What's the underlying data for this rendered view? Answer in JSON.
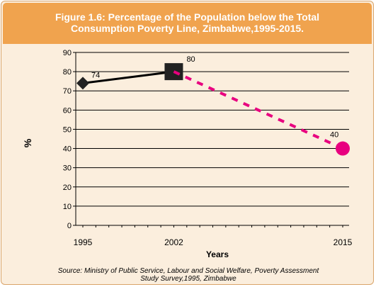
{
  "header": {
    "title_line1": "Figure 1.6: Percentage of the Population below the Total",
    "title_line2": "Consumption Poverty Line, Zimbabwe,1995-2015."
  },
  "source": {
    "line1": "Source: Ministry of Public Service, Labour and Social Welfare, Poverty Assessment",
    "line2": "Study Survey,1995, Zimbabwe"
  },
  "colors": {
    "header_bg": "#f0a34e",
    "panel_bg": "#fbeedd",
    "actual_line": "#000000",
    "projection_line": "#e8007f",
    "projection_marker": "#e8007f"
  },
  "chart_data": {
    "type": "line",
    "xlabel": "Years",
    "ylabel": "%",
    "xlim": [
      1995,
      2015
    ],
    "ylim": [
      0,
      90
    ],
    "yticks": [
      0,
      10,
      20,
      30,
      40,
      50,
      60,
      70,
      80,
      90
    ],
    "xtick_labels": [
      "1995",
      "2002",
      "2015"
    ],
    "grid": true,
    "series": [
      {
        "style": "solid",
        "points": [
          {
            "x": 1995,
            "y": 74,
            "label": "74",
            "marker": "diamond"
          },
          {
            "x": 2002,
            "y": 80,
            "label": "80",
            "marker": "square"
          }
        ]
      },
      {
        "style": "dashed",
        "points": [
          {
            "x": 2002,
            "y": 80,
            "label": "",
            "marker": "none"
          },
          {
            "x": 2015,
            "y": 40,
            "label": "40",
            "marker": "circle"
          }
        ]
      }
    ]
  }
}
